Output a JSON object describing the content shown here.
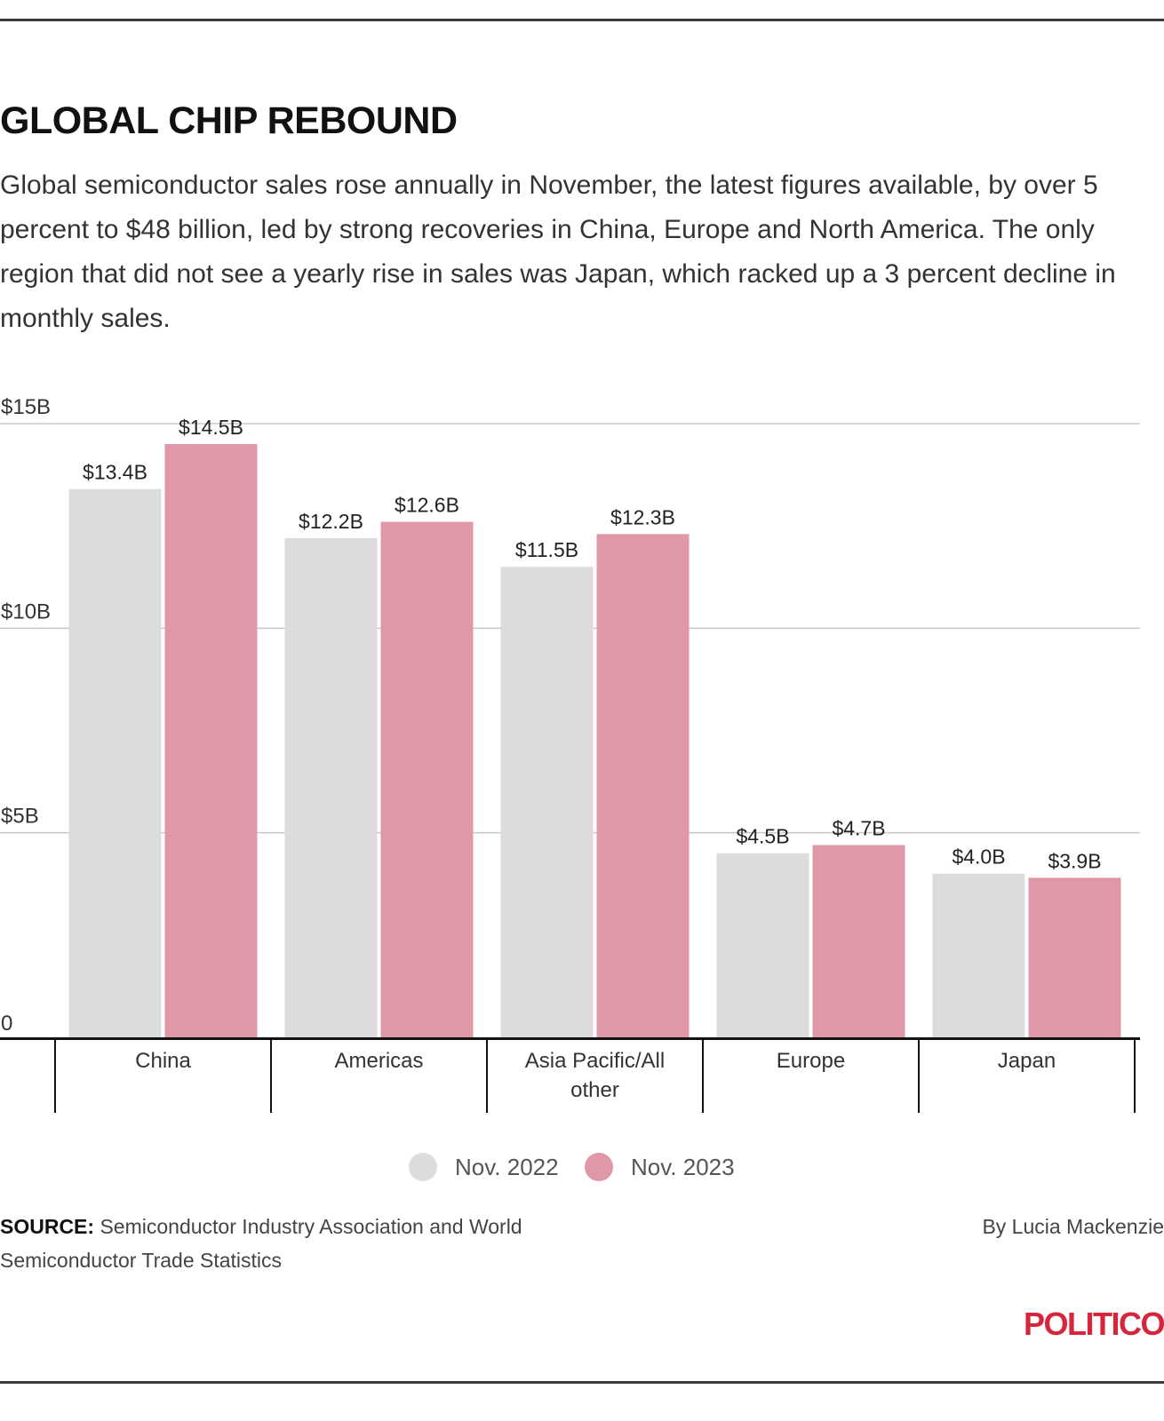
{
  "title": "GLOBAL CHIP REBOUND",
  "subtitle": "Global semiconductor sales rose annually in November, the latest figures available, by over 5 percent to $48 billion, led by strong recoveries in China, Europe and North America. The only region that did not see a yearly rise in sales was Japan, which racked up a 3 percent decline in monthly sales.",
  "source_label": "SOURCE:",
  "source_text": "Semiconductor Industry Association and World Semiconductor Trade Statistics",
  "byline": "By Lucia Mackenzie",
  "logo": "POLITICO",
  "colors": {
    "nov2022": "#dcdcdc",
    "nov2023": "#e098a8",
    "logo": "#d6263b"
  },
  "legend": [
    {
      "label": "Nov. 2022",
      "color": "#dcdcdc"
    },
    {
      "label": "Nov. 2023",
      "color": "#e098a8"
    }
  ],
  "chart_data": {
    "type": "bar",
    "title": "GLOBAL CHIP REBOUND",
    "xlabel": "",
    "ylabel": "",
    "ylim": [
      0,
      15
    ],
    "yticks": [
      {
        "value": 0,
        "label": "0"
      },
      {
        "value": 5,
        "label": "$5B"
      },
      {
        "value": 10,
        "label": "$10B"
      },
      {
        "value": 15,
        "label": "$15B"
      }
    ],
    "grid": true,
    "legend_position": "bottom-center",
    "categories": [
      "China",
      "Americas",
      "Asia Pacific/All other",
      "Europe",
      "Japan"
    ],
    "series": [
      {
        "name": "Nov. 2022",
        "values": [
          13.4,
          12.2,
          11.5,
          4.5,
          4.0
        ],
        "labels": [
          "$13.4B",
          "$12.2B",
          "$11.5B",
          "$4.5B",
          "$4.0B"
        ]
      },
      {
        "name": "Nov. 2023",
        "values": [
          14.5,
          12.6,
          12.3,
          4.7,
          3.9
        ],
        "labels": [
          "$14.5B",
          "$12.6B",
          "$12.3B",
          "$4.7B",
          "$3.9B"
        ]
      }
    ]
  }
}
